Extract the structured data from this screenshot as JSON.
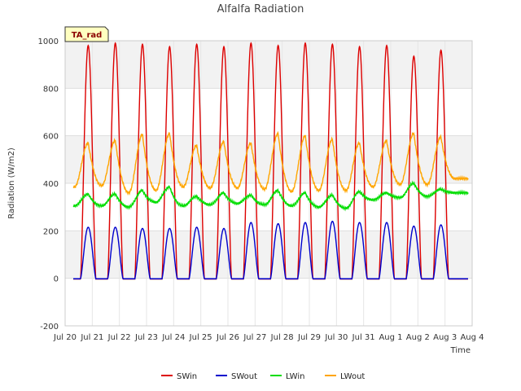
{
  "chart_data": {
    "type": "line",
    "title": "Alfalfa Radiation",
    "xlabel": "Time",
    "ylabel": "Radiation (W/m2)",
    "ylim": [
      -200,
      1000
    ],
    "yticks": [
      -200,
      0,
      200,
      400,
      600,
      800,
      1000
    ],
    "xlim": [
      0,
      15
    ],
    "xticks": [
      "Jul 20",
      "Jul 21",
      "Jul 22",
      "Jul 23",
      "Jul 24",
      "Jul 25",
      "Jul 26",
      "Jul 27",
      "Jul 28",
      "Jul 29",
      "Jul 30",
      "Jul 31",
      "Aug 1",
      "Aug 2",
      "Aug 3",
      "Aug 4"
    ],
    "grid": true,
    "legend_position": "bottom",
    "annotation": "TA_rad",
    "data_x_range": [
      0.3,
      14.85
    ],
    "series": [
      {
        "name": "SWin",
        "color": "#dd0000",
        "daily_peak_x": [
          0.85,
          1.85,
          2.85,
          3.85,
          4.85,
          5.85,
          6.85,
          7.85,
          8.85,
          9.85,
          10.85,
          11.85,
          12.85,
          13.85
        ],
        "daily_peak": [
          980,
          990,
          985,
          975,
          985,
          975,
          990,
          980,
          990,
          985,
          975,
          980,
          935,
          960
        ],
        "baseline": -3
      },
      {
        "name": "SWout",
        "color": "#0000cc",
        "daily_peak_x": [
          0.85,
          1.85,
          2.85,
          3.85,
          4.85,
          5.85,
          6.85,
          7.85,
          8.85,
          9.85,
          10.85,
          11.85,
          12.85,
          13.85
        ],
        "daily_peak": [
          215,
          215,
          210,
          210,
          215,
          210,
          235,
          230,
          235,
          240,
          235,
          235,
          220,
          225
        ],
        "baseline": -2
      },
      {
        "name": "LWin",
        "color": "#00dd00",
        "daily_peak_x": [
          0.85,
          1.85,
          2.85,
          3.85,
          4.85,
          5.85,
          6.85,
          7.85,
          8.85,
          9.85,
          10.85,
          11.85,
          12.85,
          13.85
        ],
        "daily_peak": [
          355,
          355,
          370,
          385,
          345,
          360,
          350,
          370,
          360,
          350,
          365,
          360,
          400,
          375
        ],
        "daily_min": [
          305,
          305,
          300,
          320,
          305,
          310,
          315,
          310,
          305,
          300,
          295,
          330,
          340,
          345
        ],
        "end_value": 360
      },
      {
        "name": "LWout",
        "color": "#ffa500",
        "daily_peak_x": [
          0.85,
          1.85,
          2.85,
          3.85,
          4.85,
          5.85,
          6.85,
          7.85,
          8.85,
          9.85,
          10.85,
          11.85,
          12.85,
          13.85
        ],
        "daily_peak": [
          570,
          580,
          605,
          610,
          560,
          575,
          570,
          610,
          600,
          585,
          570,
          580,
          610,
          595
        ],
        "daily_min": [
          385,
          390,
          360,
          370,
          385,
          380,
          380,
          375,
          365,
          370,
          370,
          385,
          395,
          395
        ],
        "end_value": 420
      }
    ]
  }
}
